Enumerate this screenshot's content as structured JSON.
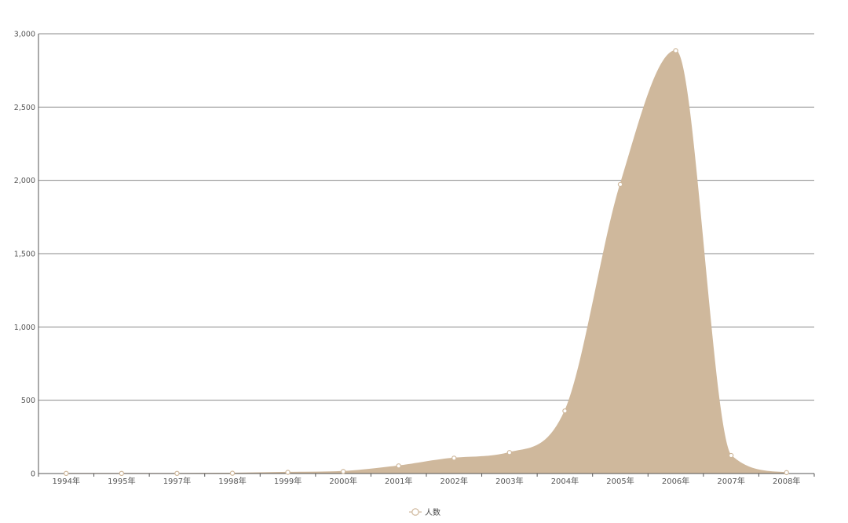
{
  "chart_data": {
    "type": "area",
    "categories": [
      "1994年",
      "1995年",
      "1997年",
      "1998年",
      "1999年",
      "2000年",
      "2001年",
      "2002年",
      "2003年",
      "2004年",
      "2005年",
      "2006年",
      "2007年",
      "2008年"
    ],
    "series": [
      {
        "name": "人数",
        "values": [
          1,
          1,
          1,
          2,
          8,
          14,
          52,
          105,
          143,
          427,
          1972,
          2885,
          123,
          6
        ],
        "color": "#cfb89c"
      }
    ],
    "ylim": [
      0,
      3000
    ],
    "y_ticks": [
      0,
      500,
      1000,
      1500,
      2000,
      2500,
      3000
    ],
    "y_tick_labels": [
      "0",
      "500",
      "1,000",
      "1,500",
      "2,000",
      "2,500",
      "3,000"
    ],
    "grid": "horizontal",
    "legend_position": "bottom-center",
    "title": "",
    "xlabel": "",
    "ylabel": ""
  }
}
